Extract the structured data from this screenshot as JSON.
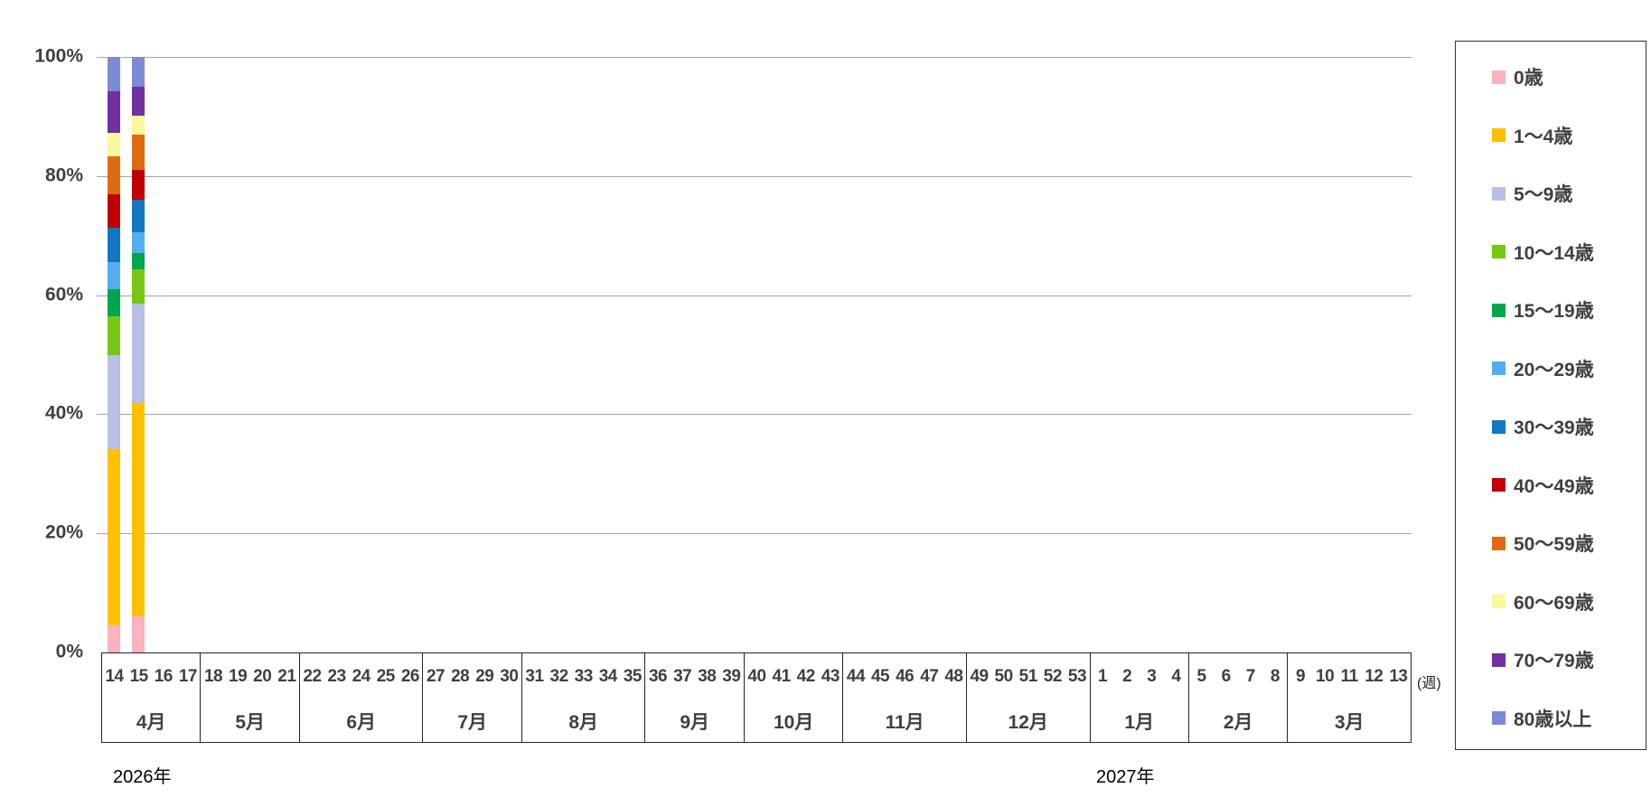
{
  "chart": {
    "y_axis": {
      "tick_labels": [
        "0%",
        "20%",
        "40%",
        "60%",
        "80%",
        "100%"
      ],
      "min": 0,
      "max": 100
    },
    "x_axis": {
      "unit_label": "(週)",
      "year_left": "2026年",
      "year_right": "2027年",
      "months": [
        {
          "label": "4月",
          "weeks": [
            "14",
            "15",
            "16",
            "17"
          ]
        },
        {
          "label": "5月",
          "weeks": [
            "18",
            "19",
            "20",
            "21"
          ]
        },
        {
          "label": "6月",
          "weeks": [
            "22",
            "23",
            "24",
            "25",
            "26"
          ]
        },
        {
          "label": "7月",
          "weeks": [
            "27",
            "28",
            "29",
            "30"
          ]
        },
        {
          "label": "8月",
          "weeks": [
            "31",
            "32",
            "33",
            "34",
            "35"
          ]
        },
        {
          "label": "9月",
          "weeks": [
            "36",
            "37",
            "38",
            "39"
          ]
        },
        {
          "label": "10月",
          "weeks": [
            "40",
            "41",
            "42",
            "43"
          ]
        },
        {
          "label": "11月",
          "weeks": [
            "44",
            "45",
            "46",
            "47",
            "48"
          ]
        },
        {
          "label": "12月",
          "weeks": [
            "49",
            "50",
            "51",
            "52",
            "53"
          ]
        },
        {
          "label": "1月",
          "weeks": [
            "1",
            "2",
            "3",
            "4"
          ]
        },
        {
          "label": "2月",
          "weeks": [
            "5",
            "6",
            "7",
            "8"
          ]
        },
        {
          "label": "3月",
          "weeks": [
            "9",
            "10",
            "11",
            "12",
            "13"
          ]
        }
      ]
    }
  },
  "chart_data": {
    "type": "bar",
    "stacked": true,
    "percent_stacked": true,
    "title": "",
    "xlabel": "(週)",
    "ylabel": "",
    "ylim": [
      0,
      100
    ],
    "ytick_step": 20,
    "gridlines": true,
    "legend_position": "right",
    "x_weeks_with_data": [
      "14",
      "15"
    ],
    "series": [
      {
        "name": "0歳",
        "color": "#F8B3BE",
        "values": [
          4.6,
          6.1
        ]
      },
      {
        "name": "1〜4歳",
        "color": "#FFC000",
        "values": [
          29.6,
          35.8
        ]
      },
      {
        "name": "5〜9歳",
        "color": "#B7C1E5",
        "values": [
          15.7,
          16.7
        ]
      },
      {
        "name": "10〜14歳",
        "color": "#76C714",
        "values": [
          6.6,
          5.7
        ]
      },
      {
        "name": "15〜19歳",
        "color": "#00A550",
        "values": [
          4.5,
          2.8
        ]
      },
      {
        "name": "20〜29歳",
        "color": "#55ADF0",
        "values": [
          4.6,
          3.4
        ]
      },
      {
        "name": "30〜39歳",
        "color": "#1377C4",
        "values": [
          5.8,
          5.5
        ]
      },
      {
        "name": "40〜49歳",
        "color": "#C00000",
        "values": [
          5.5,
          5.1
        ]
      },
      {
        "name": "50〜59歳",
        "color": "#DD6B0F",
        "values": [
          6.4,
          5.8
        ]
      },
      {
        "name": "60〜69歳",
        "color": "#FAF79C",
        "values": [
          4.0,
          3.3
        ]
      },
      {
        "name": "70〜79歳",
        "color": "#7030A0",
        "values": [
          6.9,
          4.8
        ]
      },
      {
        "name": "80歳以上",
        "color": "#7B8AD4",
        "values": [
          5.8,
          5.0
        ]
      }
    ]
  },
  "colors": {
    "gridline": "#A6A6A6",
    "axis": "#262626",
    "label_text": "#404040"
  }
}
